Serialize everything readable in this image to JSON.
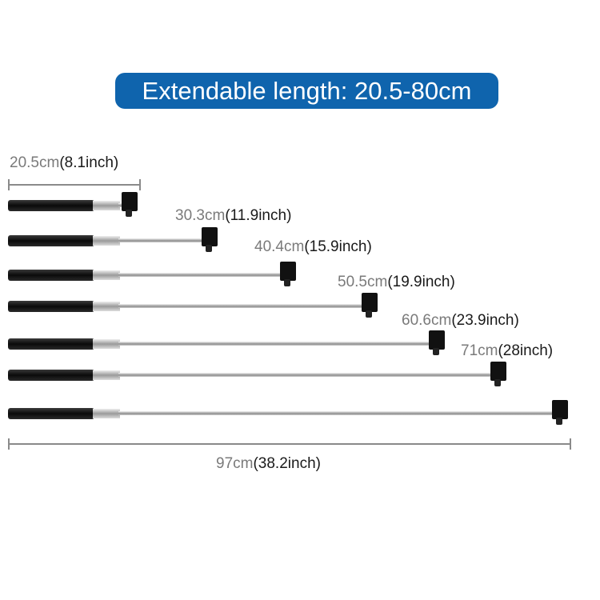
{
  "banner": {
    "text": "Extendable length: 20.5-80cm",
    "color": "#0f64ad"
  },
  "lengths": [
    {
      "cm": "20.5cm",
      "inch": "(8.1inch)"
    },
    {
      "cm": "30.3cm",
      "inch": "(11.9inch)"
    },
    {
      "cm": "40.4cm",
      "inch": "(15.9inch)"
    },
    {
      "cm": "50.5cm",
      "inch": "(19.9inch)"
    },
    {
      "cm": "60.6cm",
      "inch": "(23.9inch)"
    },
    {
      "cm": "71cm",
      "inch": "(28inch)"
    }
  ],
  "total": {
    "cm": "97cm",
    "inch": "(38.2inch)"
  }
}
